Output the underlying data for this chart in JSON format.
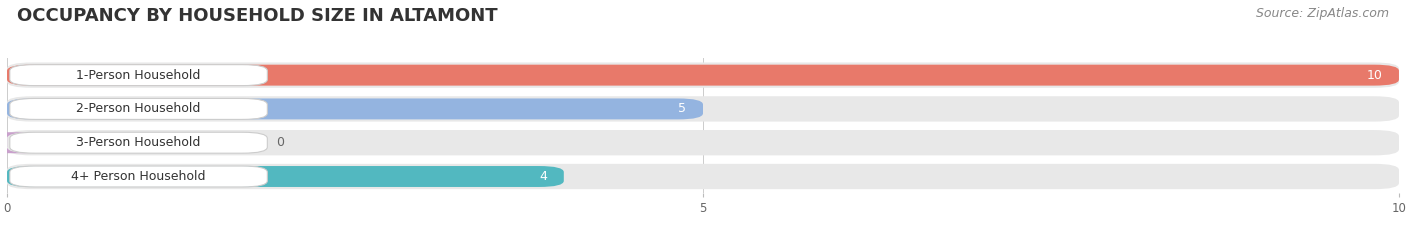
{
  "title": "OCCUPANCY BY HOUSEHOLD SIZE IN ALTAMONT",
  "source": "Source: ZipAtlas.com",
  "categories": [
    "1-Person Household",
    "2-Person Household",
    "3-Person Household",
    "4+ Person Household"
  ],
  "values": [
    10,
    5,
    0,
    4
  ],
  "bar_colors": [
    "#e8796a",
    "#94b4e0",
    "#c9a0cc",
    "#52b8c0"
  ],
  "track_color": "#e8e8e8",
  "label_bg_color": "#ffffff",
  "value_color_inside": "#ffffff",
  "value_color_outside": "#666666",
  "xlim": [
    0,
    10
  ],
  "xticks": [
    0,
    5,
    10
  ],
  "title_fontsize": 13,
  "source_fontsize": 9,
  "label_fontsize": 9,
  "value_fontsize": 9,
  "bg_color": "#ffffff"
}
